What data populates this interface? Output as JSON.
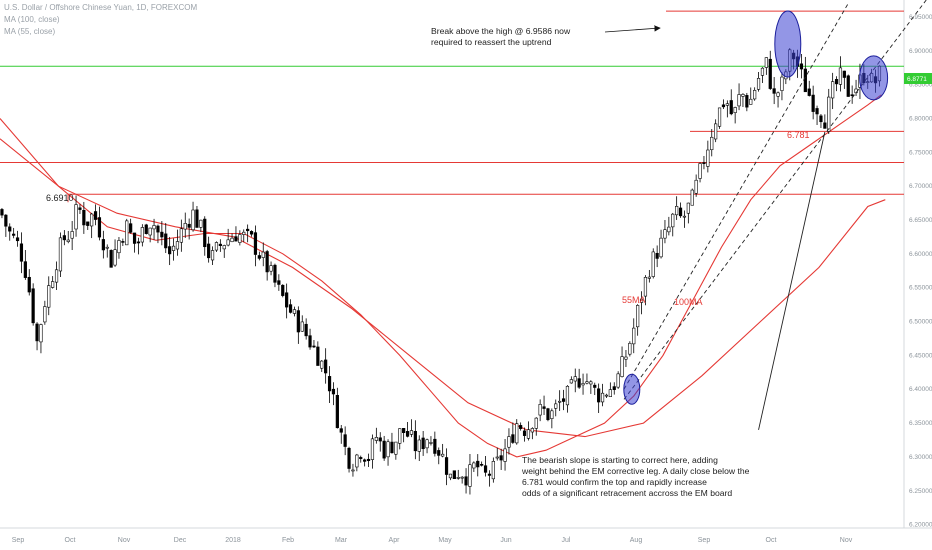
{
  "chart_data": {
    "type": "candlestick",
    "legend": {
      "symbol": "U.S. Dollar / Offshore Chinese Yuan, 1D, FOREXCOM",
      "ma1": "MA (100, close)",
      "ma2": "MA (55, close)"
    },
    "y_axis": {
      "ticks": [
        "6.95000",
        "6.90000",
        "6.85000",
        "6.80000",
        "6.75000",
        "6.70000",
        "6.65000",
        "6.60000",
        "6.55000",
        "6.50000",
        "6.45000",
        "6.40000",
        "6.35000",
        "6.30000",
        "6.25000",
        "6.20000"
      ],
      "range": [
        6.195,
        6.975
      ]
    },
    "x_axis": {
      "ticks": [
        "Sep",
        "Oct",
        "Nov",
        "Dec",
        "2018",
        "Feb",
        "Mar",
        "Apr",
        "May",
        "Jun",
        "Jul",
        "Aug",
        "Sep",
        "Oct",
        "Nov"
      ]
    },
    "current_price_label": "6.8771",
    "current_price": 6.8771,
    "horizontal_levels": [
      {
        "name": "high",
        "value": 6.9586,
        "color": "#e53935"
      },
      {
        "name": "current",
        "value": 6.8771,
        "color": "#33cc33"
      },
      {
        "name": "support",
        "value": 6.781,
        "color": "#e53935"
      },
      {
        "name": "resistance-1",
        "value": 6.735,
        "color": "#e53935"
      },
      {
        "name": "resistance-2",
        "value": 6.688,
        "color": "#e53935"
      }
    ],
    "level_labels": {
      "prior_high": "6.6910",
      "support": "6.781"
    },
    "ma_labels": {
      "ma55": "55MA",
      "ma100": "100MA"
    },
    "annotations": {
      "top": [
        "Break above the high @ 6.9586 now",
        "required to reassert the uptrend"
      ],
      "bottom": [
        "The bearish slope is starting to correct here, adding",
        "weight behind the EM corrective leg. A daily close below the",
        "6.781 would confirm the top and rapidly increase",
        "odds of a significant retracement accross the EM board"
      ]
    },
    "colors": {
      "candle": "#000000",
      "ma": "#e53935",
      "highlight": "#3b3fd1",
      "green_line": "#33cc33"
    },
    "price_path": [
      {
        "t": 0.0,
        "v": 6.665
      },
      {
        "t": 0.4,
        "v": 6.635
      },
      {
        "t": 1.0,
        "v": 6.61
      },
      {
        "t": 1.4,
        "v": 6.565
      },
      {
        "t": 1.9,
        "v": 6.47
      },
      {
        "t": 2.3,
        "v": 6.53
      },
      {
        "t": 2.7,
        "v": 6.57
      },
      {
        "t": 3.2,
        "v": 6.62
      },
      {
        "t": 3.6,
        "v": 6.63
      },
      {
        "t": 4.0,
        "v": 6.67
      },
      {
        "t": 4.4,
        "v": 6.645
      },
      {
        "t": 4.8,
        "v": 6.66
      },
      {
        "t": 5.3,
        "v": 6.62
      },
      {
        "t": 5.7,
        "v": 6.59
      },
      {
        "t": 6.1,
        "v": 6.62
      },
      {
        "t": 6.5,
        "v": 6.64
      },
      {
        "t": 7.0,
        "v": 6.61
      },
      {
        "t": 7.4,
        "v": 6.64
      },
      {
        "t": 7.8,
        "v": 6.65
      },
      {
        "t": 8.2,
        "v": 6.625
      },
      {
        "t": 8.7,
        "v": 6.6
      },
      {
        "t": 9.1,
        "v": 6.62
      },
      {
        "t": 9.5,
        "v": 6.645
      },
      {
        "t": 9.9,
        "v": 6.66
      },
      {
        "t": 10.4,
        "v": 6.63
      },
      {
        "t": 10.8,
        "v": 6.59
      },
      {
        "t": 11.2,
        "v": 6.61
      },
      {
        "t": 11.6,
        "v": 6.62
      },
      {
        "t": 12.1,
        "v": 6.63
      },
      {
        "t": 12.5,
        "v": 6.625
      },
      {
        "t": 12.9,
        "v": 6.62
      },
      {
        "t": 13.3,
        "v": 6.6
      },
      {
        "t": 13.8,
        "v": 6.575
      },
      {
        "t": 14.2,
        "v": 6.55
      },
      {
        "t": 14.6,
        "v": 6.53
      },
      {
        "t": 15.0,
        "v": 6.51
      },
      {
        "t": 15.5,
        "v": 6.49
      },
      {
        "t": 15.9,
        "v": 6.47
      },
      {
        "t": 16.3,
        "v": 6.45
      },
      {
        "t": 16.8,
        "v": 6.42
      },
      {
        "t": 17.2,
        "v": 6.37
      },
      {
        "t": 17.6,
        "v": 6.32
      },
      {
        "t": 18.0,
        "v": 6.29
      },
      {
        "t": 18.5,
        "v": 6.31
      },
      {
        "t": 18.9,
        "v": 6.3
      },
      {
        "t": 19.3,
        "v": 6.33
      },
      {
        "t": 19.7,
        "v": 6.31
      },
      {
        "t": 20.2,
        "v": 6.32
      },
      {
        "t": 20.6,
        "v": 6.34
      },
      {
        "t": 21.0,
        "v": 6.33
      },
      {
        "t": 21.4,
        "v": 6.31
      },
      {
        "t": 21.9,
        "v": 6.33
      },
      {
        "t": 22.3,
        "v": 6.32
      },
      {
        "t": 22.7,
        "v": 6.3
      },
      {
        "t": 23.1,
        "v": 6.27
      },
      {
        "t": 23.6,
        "v": 6.28
      },
      {
        "t": 24.0,
        "v": 6.27
      },
      {
        "t": 24.4,
        "v": 6.29
      },
      {
        "t": 24.8,
        "v": 6.27
      },
      {
        "t": 25.3,
        "v": 6.28
      },
      {
        "t": 25.7,
        "v": 6.3
      },
      {
        "t": 26.1,
        "v": 6.32
      },
      {
        "t": 26.5,
        "v": 6.35
      },
      {
        "t": 27.0,
        "v": 6.34
      },
      {
        "t": 27.4,
        "v": 6.36
      },
      {
        "t": 27.8,
        "v": 6.37
      },
      {
        "t": 28.2,
        "v": 6.36
      },
      {
        "t": 28.7,
        "v": 6.38
      },
      {
        "t": 29.1,
        "v": 6.39
      },
      {
        "t": 29.5,
        "v": 6.41
      },
      {
        "t": 29.9,
        "v": 6.42
      },
      {
        "t": 30.4,
        "v": 6.4
      },
      {
        "t": 30.8,
        "v": 6.39
      },
      {
        "t": 31.2,
        "v": 6.4
      },
      {
        "t": 31.6,
        "v": 6.41
      },
      {
        "t": 32.1,
        "v": 6.45
      },
      {
        "t": 32.5,
        "v": 6.49
      },
      {
        "t": 32.9,
        "v": 6.54
      },
      {
        "t": 33.3,
        "v": 6.58
      },
      {
        "t": 33.8,
        "v": 6.61
      },
      {
        "t": 34.2,
        "v": 6.63
      },
      {
        "t": 34.6,
        "v": 6.66
      },
      {
        "t": 35.0,
        "v": 6.65
      },
      {
        "t": 35.5,
        "v": 6.68
      },
      {
        "t": 35.9,
        "v": 6.72
      },
      {
        "t": 36.3,
        "v": 6.76
      },
      {
        "t": 36.7,
        "v": 6.8
      },
      {
        "t": 37.2,
        "v": 6.83
      },
      {
        "t": 37.6,
        "v": 6.8
      },
      {
        "t": 38.0,
        "v": 6.84
      },
      {
        "t": 38.4,
        "v": 6.82
      },
      {
        "t": 38.9,
        "v": 6.86
      },
      {
        "t": 39.3,
        "v": 6.88
      },
      {
        "t": 39.7,
        "v": 6.83
      },
      {
        "t": 40.1,
        "v": 6.85
      },
      {
        "t": 40.6,
        "v": 6.9
      },
      {
        "t": 41.0,
        "v": 6.87
      },
      {
        "t": 41.4,
        "v": 6.84
      },
      {
        "t": 41.8,
        "v": 6.82
      },
      {
        "t": 42.3,
        "v": 6.8
      },
      {
        "t": 42.7,
        "v": 6.84
      },
      {
        "t": 43.1,
        "v": 6.86
      },
      {
        "t": 43.5,
        "v": 6.84
      },
      {
        "t": 44.0,
        "v": 6.85
      },
      {
        "t": 44.4,
        "v": 6.87
      },
      {
        "t": 44.8,
        "v": 6.85
      },
      {
        "t": 45.2,
        "v": 6.87
      }
    ],
    "ma55_path": [
      {
        "t": 0.0,
        "v": 6.8
      },
      {
        "t": 3.0,
        "v": 6.7
      },
      {
        "t": 5.5,
        "v": 6.64
      },
      {
        "t": 8.0,
        "v": 6.62
      },
      {
        "t": 10.5,
        "v": 6.63
      },
      {
        "t": 12.5,
        "v": 6.63
      },
      {
        "t": 14.5,
        "v": 6.6
      },
      {
        "t": 16.5,
        "v": 6.56
      },
      {
        "t": 18.5,
        "v": 6.51
      },
      {
        "t": 20.5,
        "v": 6.45
      },
      {
        "t": 22.0,
        "v": 6.4
      },
      {
        "t": 23.5,
        "v": 6.35
      },
      {
        "t": 25.0,
        "v": 6.32
      },
      {
        "t": 26.5,
        "v": 6.3
      },
      {
        "t": 28.0,
        "v": 6.31
      },
      {
        "t": 29.5,
        "v": 6.33
      },
      {
        "t": 31.0,
        "v": 6.35
      },
      {
        "t": 32.5,
        "v": 6.39
      },
      {
        "t": 34.0,
        "v": 6.45
      },
      {
        "t": 35.5,
        "v": 6.53
      },
      {
        "t": 37.0,
        "v": 6.61
      },
      {
        "t": 38.5,
        "v": 6.68
      },
      {
        "t": 40.0,
        "v": 6.73
      },
      {
        "t": 41.5,
        "v": 6.76
      },
      {
        "t": 43.0,
        "v": 6.79
      },
      {
        "t": 44.5,
        "v": 6.82
      },
      {
        "t": 45.2,
        "v": 6.835
      }
    ],
    "ma100_path": [
      {
        "t": 0.0,
        "v": 6.77
      },
      {
        "t": 3.0,
        "v": 6.7
      },
      {
        "t": 6.0,
        "v": 6.66
      },
      {
        "t": 9.0,
        "v": 6.64
      },
      {
        "t": 12.0,
        "v": 6.625
      },
      {
        "t": 15.0,
        "v": 6.58
      },
      {
        "t": 18.0,
        "v": 6.52
      },
      {
        "t": 21.0,
        "v": 6.45
      },
      {
        "t": 24.0,
        "v": 6.38
      },
      {
        "t": 27.0,
        "v": 6.34
      },
      {
        "t": 30.0,
        "v": 6.33
      },
      {
        "t": 33.0,
        "v": 6.35
      },
      {
        "t": 36.0,
        "v": 6.42
      },
      {
        "t": 39.0,
        "v": 6.5
      },
      {
        "t": 42.0,
        "v": 6.58
      },
      {
        "t": 44.5,
        "v": 6.67
      },
      {
        "t": 45.4,
        "v": 6.68
      }
    ],
    "highlight_circles": [
      {
        "t": 32.4,
        "v": 6.4
      },
      {
        "t": 40.4,
        "v": 6.91
      },
      {
        "t": 44.8,
        "v": 6.86
      }
    ],
    "trendlines": [
      {
        "t1": 32.0,
        "v1": 6.4,
        "t2": 43.5,
        "v2": 6.97,
        "dashed": true
      },
      {
        "t1": 32.0,
        "v1": 6.385,
        "t2": 47.5,
        "v2": 6.975,
        "dashed": true
      },
      {
        "t1": 38.9,
        "v1": 6.34,
        "t2": 42.3,
        "v2": 6.78,
        "dashed": false
      }
    ]
  }
}
